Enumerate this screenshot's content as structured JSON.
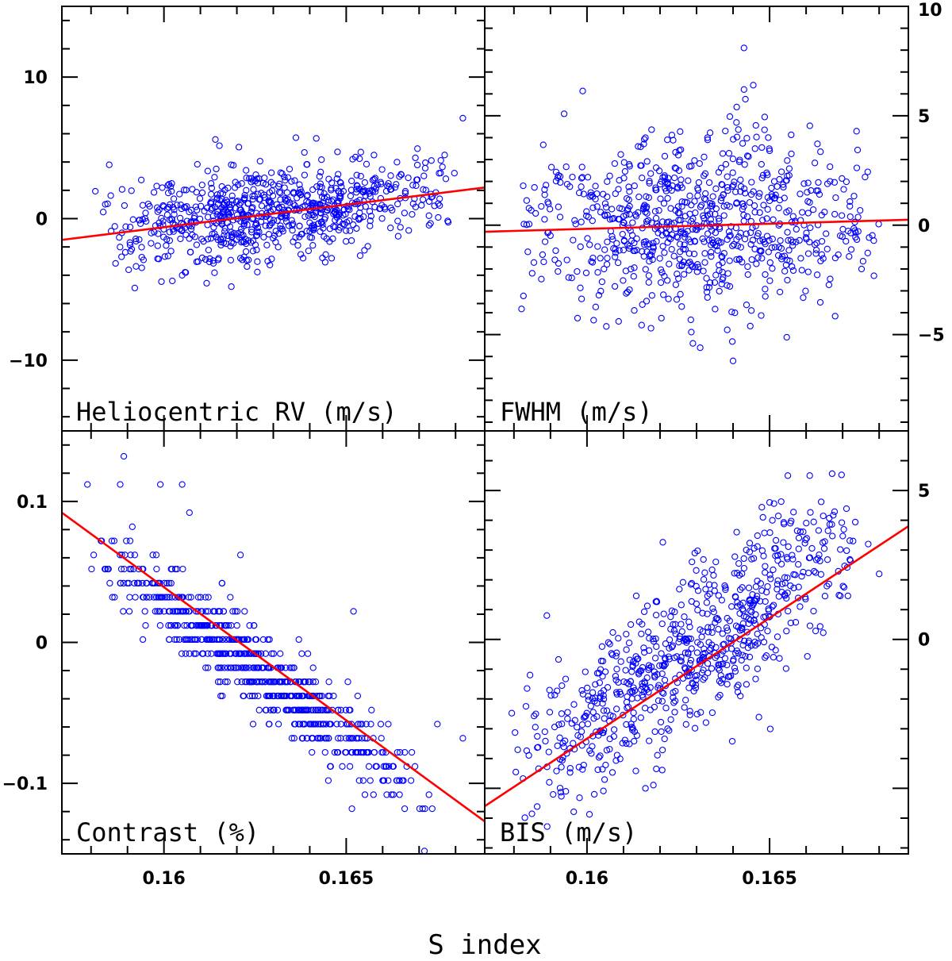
{
  "figure": {
    "xlabel": "S index",
    "point_color": "#0000ff",
    "fit_color": "#ff0000",
    "frame_color": "#000000"
  },
  "chart_data": [
    {
      "type": "scatter",
      "id": "rv",
      "title": "Heliocentric RV (m/s)",
      "xlabel": "S index",
      "ylabel": "",
      "xlim": [
        0.1572,
        0.1688
      ],
      "ylim": [
        -15,
        15
      ],
      "yticks": [
        -10,
        0,
        10
      ],
      "ytick_labels": [
        "−10",
        "0",
        "10"
      ],
      "ytick_side": "left",
      "xticks": [
        0.16,
        0.165
      ],
      "xtick_labels": [
        "",
        ""
      ],
      "fit": {
        "x": [
          0.1572,
          0.1688
        ],
        "y": [
          -1.5,
          2.2
        ]
      },
      "cloud": {
        "x": [
          0.1578,
          0.1683
        ],
        "mean_at_xmin": -1.2,
        "slope": 300,
        "sigma": 1.6,
        "n": 760,
        "seed": 11
      },
      "outliers": [
        [
          0.1682,
          7.1
        ],
        [
          0.1585,
          3.8
        ],
        [
          0.1592,
          -4.9
        ],
        [
          0.1605,
          -4.0
        ],
        [
          0.1654,
          4.7
        ],
        [
          0.1677,
          4.5
        ],
        [
          0.1621,
          -2.8
        ],
        [
          0.1646,
          -2.8
        ],
        [
          0.1598,
          2.3
        ]
      ]
    },
    {
      "type": "scatter",
      "id": "fwhm",
      "title": "FWHM (m/s)",
      "xlabel": "S index",
      "ylabel": "",
      "xlim": [
        0.1572,
        0.1688
      ],
      "ylim": [
        -9.4,
        10
      ],
      "yticks": [
        -5,
        0,
        5,
        10
      ],
      "ytick_labels": [
        "−5",
        "0",
        "5",
        "10"
      ],
      "ytick_side": "right",
      "xticks": [
        0.16,
        0.165
      ],
      "xtick_labels": [
        "",
        ""
      ],
      "fit": {
        "x": [
          0.1572,
          0.1688
        ],
        "y": [
          -0.3,
          0.25
        ]
      },
      "cloud": {
        "x": [
          0.158,
          0.1682
        ],
        "mean_at_xmin": -0.2,
        "slope": 40,
        "sigma": 1.9,
        "n": 760,
        "seed": 23
      },
      "outliers": [
        [
          0.1643,
          8.1
        ],
        [
          0.1643,
          6.2
        ],
        [
          0.1641,
          5.4
        ],
        [
          0.1633,
          4.0
        ],
        [
          0.1616,
          4.0
        ],
        [
          0.1614,
          3.6
        ],
        [
          0.1622,
          3.9
        ],
        [
          0.1625,
          3.2
        ],
        [
          0.1646,
          3.5
        ],
        [
          0.165,
          3.4
        ],
        [
          0.164,
          -6.2
        ],
        [
          0.1629,
          -5.4
        ],
        [
          0.1631,
          -5.6
        ],
        [
          0.1633,
          -3.3
        ],
        [
          0.1645,
          -3.9
        ],
        [
          0.1668,
          -1.5
        ],
        [
          0.1585,
          -2.2
        ],
        [
          0.1596,
          2.2
        ]
      ]
    },
    {
      "type": "scatter",
      "id": "contrast",
      "title": "Contrast (%)",
      "xlabel": "S index",
      "ylabel": "",
      "xlim": [
        0.1572,
        0.1688
      ],
      "ylim": [
        -0.15,
        0.15
      ],
      "yticks": [
        -0.1,
        0,
        0.1
      ],
      "ytick_labels": [
        "−0.1",
        "0",
        "0.1"
      ],
      "ytick_side": "left",
      "xticks": [
        0.16,
        0.165
      ],
      "xtick_labels": [
        "0.16",
        "0.165"
      ],
      "fit": {
        "x": [
          0.1572,
          0.1688
        ],
        "y": [
          0.092,
          -0.127
        ]
      },
      "quantize": 0.01,
      "cloud": {
        "x": [
          0.1578,
          0.1675
        ],
        "mean_at_xmin": 0.082,
        "slope": -18.9,
        "sigma": 0.014,
        "n": 700,
        "seed": 37
      },
      "outliers": [
        [
          0.1589,
          0.132
        ],
        [
          0.1588,
          0.112
        ],
        [
          0.1579,
          0.112
        ],
        [
          0.1599,
          0.112
        ],
        [
          0.1605,
          0.112
        ],
        [
          0.1607,
          0.092
        ],
        [
          0.1621,
          0.062
        ],
        [
          0.1652,
          0.022
        ],
        [
          0.1682,
          -0.068
        ],
        [
          0.1668,
          -0.078
        ],
        [
          0.1675,
          -0.058
        ]
      ]
    },
    {
      "type": "scatter",
      "id": "bis",
      "title": "BIS (m/s)",
      "xlabel": "S index",
      "ylabel": "",
      "xlim": [
        0.1572,
        0.1688
      ],
      "ylim": [
        -7.2,
        7.0
      ],
      "yticks": [
        0,
        5
      ],
      "ytick_labels": [
        "0",
        "5"
      ],
      "ytick_side": "right",
      "xticks": [
        0.16,
        0.165
      ],
      "xtick_labels": [
        "0.16",
        "0.165"
      ],
      "fit": {
        "x": [
          0.1572,
          0.1688
        ],
        "y": [
          -5.6,
          3.8
        ]
      },
      "cloud": {
        "x": [
          0.1578,
          0.168
        ],
        "mean_at_xmin": -4.9,
        "slope": 810,
        "sigma": 1.3,
        "n": 740,
        "seed": 53
      },
      "outliers": [
        [
          0.1655,
          5.5
        ],
        [
          0.1661,
          5.5
        ],
        [
          0.165,
          4.6
        ],
        [
          0.1589,
          0.8
        ],
        [
          0.1641,
          3.6
        ],
        [
          0.1677,
          3.2
        ],
        [
          0.168,
          2.2
        ],
        [
          0.1586,
          -2.5
        ],
        [
          0.1602,
          -5.2
        ],
        [
          0.1616,
          -5.0
        ],
        [
          0.1642,
          -1.9
        ]
      ]
    }
  ]
}
